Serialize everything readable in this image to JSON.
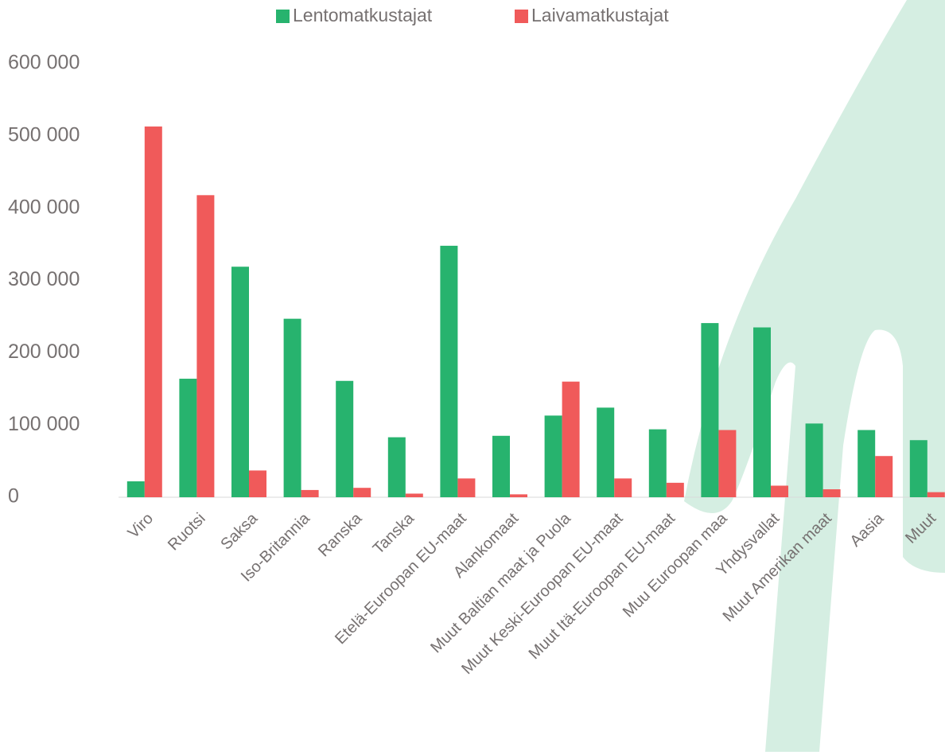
{
  "chart_data": {
    "type": "bar",
    "categories": [
      "Viro",
      "Ruotsi",
      "Saksa",
      "Iso-Britannia",
      "Ranska",
      "Tanska",
      "Etelä-Euroopan EU-maat",
      "Alankomaat",
      "Muut Baltian maat ja Puola",
      "Muut Keski-Euroopan EU-maat",
      "Muut Itä-Euroopan EU-maat",
      "Muu Euroopan maa",
      "Yhdysvallat",
      "Muut Amerikan maat",
      "Aasia",
      "Muut"
    ],
    "series": [
      {
        "name": "Lentomatkustajat",
        "color": "#27b36e",
        "values": [
          22000,
          164000,
          319000,
          247000,
          161000,
          83000,
          348000,
          85000,
          113000,
          124000,
          94000,
          241000,
          235000,
          102000,
          93000,
          79000
        ]
      },
      {
        "name": "Laivamatkustajat",
        "color": "#f05a5a",
        "values": [
          513000,
          418000,
          37000,
          10000,
          13000,
          5000,
          26000,
          4000,
          160000,
          26000,
          20000,
          93000,
          16000,
          11000,
          57000,
          7000
        ]
      }
    ],
    "ylim": [
      0,
      600000
    ],
    "yticks": [
      0,
      {
        "value": 100000,
        "label": "100 000"
      },
      {
        "value": 200000,
        "label": "200 000"
      },
      {
        "value": 300000,
        "label": "300 000"
      },
      {
        "value": 400000,
        "label": "400 000"
      },
      {
        "value": 500000,
        "label": "500 000"
      },
      {
        "value": 600000,
        "label": "600 000"
      }
    ],
    "legend": "top"
  }
}
